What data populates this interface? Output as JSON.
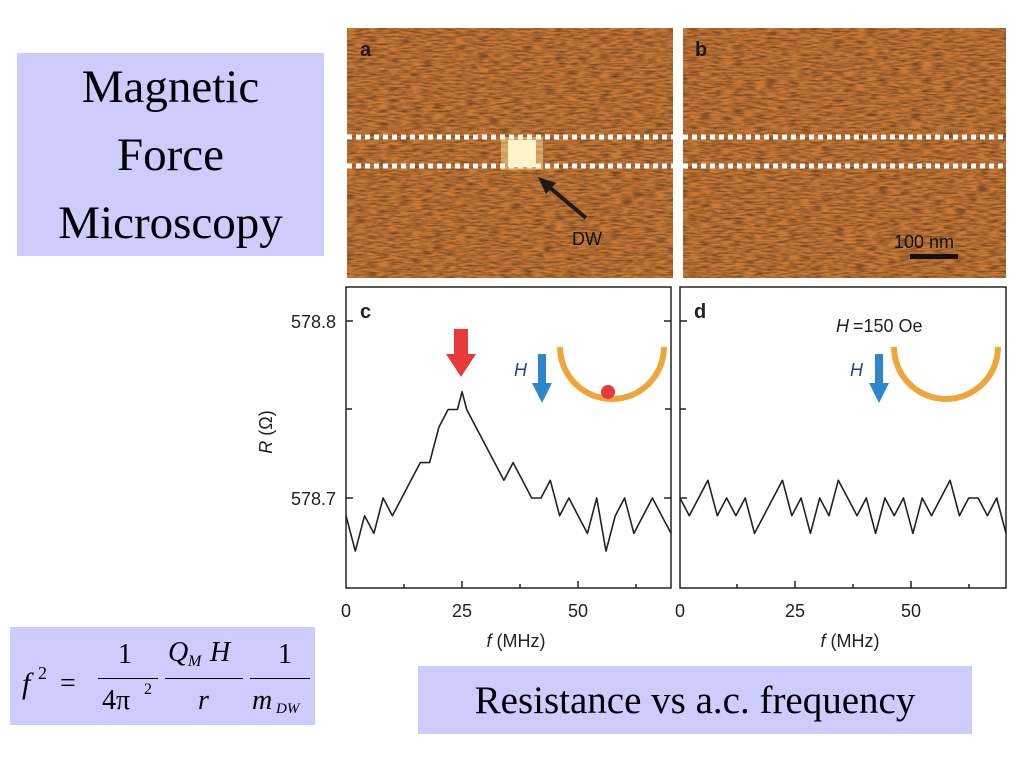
{
  "title_lines": [
    "Magnetic",
    "Force",
    "Microscopy"
  ],
  "caption": "Resistance vs a.c. frequency",
  "formula": {
    "lhs": "f",
    "lhs_exp": "2",
    "equals": "=",
    "frac1_num": "1",
    "frac1_den": "4π",
    "frac1_den_exp": "2",
    "frac2_num_Q": "Q",
    "frac2_num_Q_sub": "M",
    "frac2_num_H": "H",
    "frac2_den": "r",
    "frac3_num": "1",
    "frac3_den_m": "m",
    "frac3_den_sub": "DW"
  },
  "mfm": {
    "panel_a_label": "a",
    "panel_b_label": "b",
    "dw_label": "DW",
    "scale_label": "100 nm",
    "colors": {
      "dark": "#b5642a",
      "mid": "#d0843e",
      "light": "#e0a45c"
    }
  },
  "plots": {
    "panel_c_label": "c",
    "panel_d_label": "d",
    "ylabel_var": "R",
    "ylabel_unit": "(Ω)",
    "yticks": [
      "578.8",
      "578.7"
    ],
    "xticks": [
      "0",
      "25",
      "50"
    ],
    "xlabel_var": "f",
    "xlabel_unit": "(MHz)",
    "field_var": "H",
    "field_value": "=150 Oe",
    "colors": {
      "arrow_red": "#e8393b",
      "arrow_blue": "#2e86cc",
      "bowl": "#eea53a",
      "dot": "#e8393b",
      "trace": "#222222"
    }
  },
  "chart_data": [
    {
      "type": "line",
      "panel": "c",
      "xlabel": "f (MHz)",
      "ylabel": "R (Ω)",
      "xlim": [
        0,
        70
      ],
      "ylim": [
        578.65,
        578.82
      ],
      "x": [
        0,
        2,
        4,
        6,
        8,
        10,
        12,
        14,
        16,
        18,
        20,
        22,
        24,
        25,
        26,
        28,
        30,
        32,
        34,
        36,
        38,
        40,
        42,
        44,
        46,
        48,
        50,
        52,
        54,
        56,
        58,
        60,
        62,
        64,
        66,
        68,
        70
      ],
      "y": [
        578.69,
        578.67,
        578.69,
        578.68,
        578.7,
        578.69,
        578.7,
        578.71,
        578.72,
        578.72,
        578.74,
        578.75,
        578.75,
        578.76,
        578.75,
        578.74,
        578.73,
        578.72,
        578.71,
        578.72,
        578.71,
        578.7,
        578.7,
        578.71,
        578.69,
        578.7,
        578.69,
        578.68,
        578.7,
        578.67,
        578.69,
        578.7,
        578.68,
        578.69,
        578.7,
        578.69,
        578.68
      ]
    },
    {
      "type": "line",
      "panel": "d",
      "xlabel": "f (MHz)",
      "xlim": [
        0,
        70
      ],
      "ylim": [
        578.65,
        578.82
      ],
      "x": [
        0,
        2,
        4,
        6,
        8,
        10,
        12,
        14,
        16,
        18,
        20,
        22,
        24,
        26,
        28,
        30,
        32,
        34,
        36,
        38,
        40,
        42,
        44,
        46,
        48,
        50,
        52,
        54,
        56,
        58,
        60,
        62,
        64,
        66,
        68,
        70
      ],
      "y": [
        578.7,
        578.69,
        578.7,
        578.71,
        578.69,
        578.7,
        578.69,
        578.7,
        578.68,
        578.69,
        578.7,
        578.71,
        578.69,
        578.7,
        578.68,
        578.7,
        578.69,
        578.71,
        578.7,
        578.69,
        578.7,
        578.68,
        578.7,
        578.69,
        578.7,
        578.68,
        578.7,
        578.69,
        578.7,
        578.71,
        578.69,
        578.7,
        578.7,
        578.69,
        578.7,
        578.68
      ]
    }
  ]
}
